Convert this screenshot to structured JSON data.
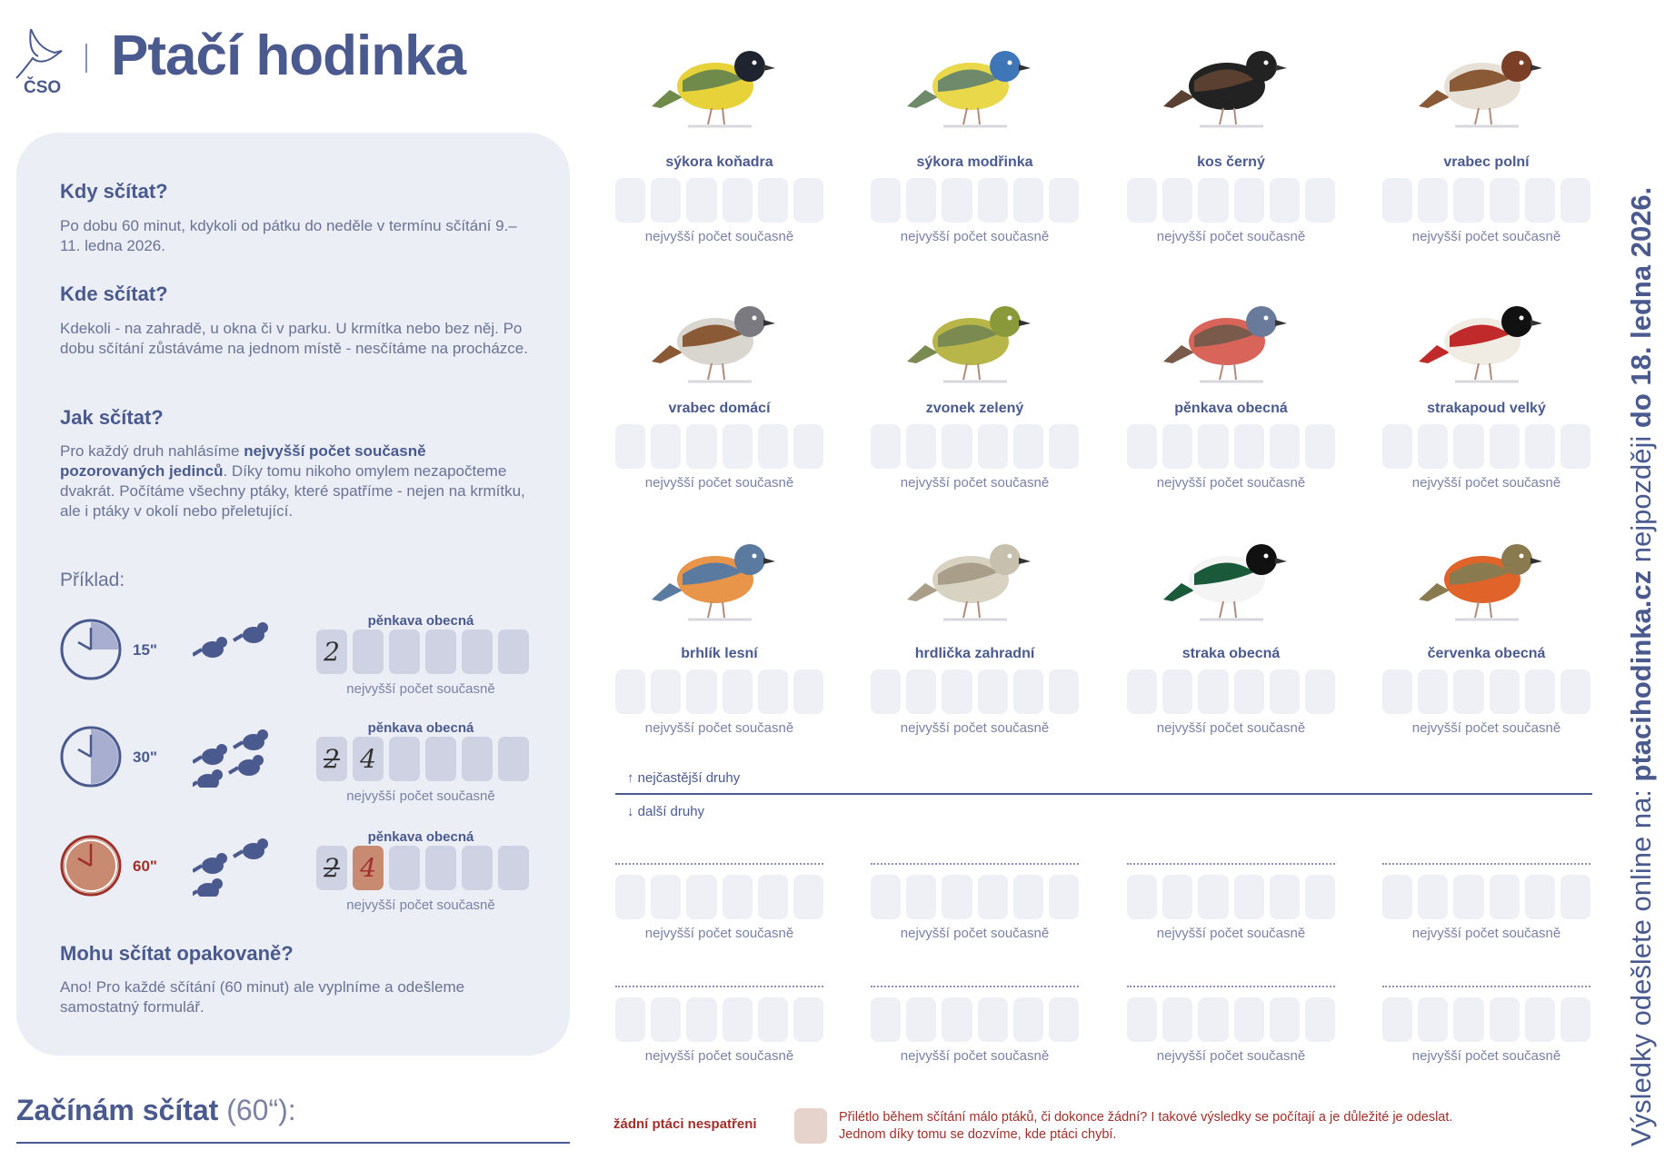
{
  "header": {
    "logo_text": "ČSO",
    "title": "Ptačí hodinka"
  },
  "info": {
    "when_title": "Kdy sčítat?",
    "when_text": "Po dobu 60 minut, kdykoli od pátku do neděle v termínu sčítání 9.–11. ledna 2026.",
    "where_title": "Kde sčítat?",
    "where_text": "Kdekoli - na zahradě, u okna či v parku. U krmítka nebo bez něj. Po dobu sčítání zůstáváme na jednom místě - nesčítáme na procházce.",
    "how_title": "Jak sčítat?",
    "how_text_1": "Pro každý druh nahlásíme ",
    "how_text_bold": "nejvyšší počet současně pozorovaných jedinců",
    "how_text_2": ". Díky tomu nikoho omylem nezapočteme dvakrát. Počítáme všechny ptáky, které spatříme - nejen na krmítku, ale i ptáky v okolí nebo přeletující.",
    "example_title": "Příklad:",
    "examples": [
      {
        "time": "15\"",
        "species": "pěnkava obecná",
        "values": [
          "2"
        ],
        "caption": "nejvyšší počet současně",
        "fraction": 0.25
      },
      {
        "time": "30\"",
        "species": "pěnkava obecná",
        "values": [
          "2",
          "4"
        ],
        "caption": "nejvyšší počet současně",
        "fraction": 0.5
      },
      {
        "time": "60\"",
        "species": "pěnkava obecná",
        "values": [
          "2",
          "4"
        ],
        "caption": "nejvyšší počet současně",
        "fraction": 1
      }
    ],
    "repeat_title": "Mohu sčítat opakovaně?",
    "repeat_text": "Ano! Pro každé sčítání (60 minut) ale vyplníme a odešleme samostatný formulář."
  },
  "start": {
    "label": "Začínám sčítat",
    "duration": "(60“):"
  },
  "species": [
    {
      "name": "sýkora koňadra",
      "caption": "nejvyšší počet současně",
      "colors": [
        "#e8d23a",
        "#1f2430",
        "#6f8a4a"
      ]
    },
    {
      "name": "sýkora modřinka",
      "caption": "nejvyšší počet současně",
      "colors": [
        "#e8d84a",
        "#3f76b8",
        "#6f8a6a"
      ]
    },
    {
      "name": "kos černý",
      "caption": "nejvyšší počet současně",
      "colors": [
        "#222",
        "#222",
        "#5a4030"
      ]
    },
    {
      "name": "vrabec polní",
      "caption": "nejvyšší počet současně",
      "colors": [
        "#e6e0d6",
        "#7a3f26",
        "#8a5a36"
      ]
    },
    {
      "name": "vrabec domácí",
      "caption": "nejvyšší počet současně",
      "colors": [
        "#d9d6d0",
        "#7a7a80",
        "#8a5a36"
      ]
    },
    {
      "name": "zvonek zelený",
      "caption": "nejvyšší počet současně",
      "colors": [
        "#b8b648",
        "#8a9a3a",
        "#7a8a50"
      ]
    },
    {
      "name": "pěnkava obecná",
      "caption": "nejvyšší počet současně",
      "colors": [
        "#d8645a",
        "#6a7a9a",
        "#7a5a4a"
      ]
    },
    {
      "name": "strakapoud velký",
      "caption": "nejvyšší počet současně",
      "colors": [
        "#f0ece4",
        "#111",
        "#c02a2a"
      ]
    },
    {
      "name": "brhlík lesní",
      "caption": "nejvyšší počet současně",
      "colors": [
        "#e8954a",
        "#5a7aa0",
        "#5a7aa0"
      ]
    },
    {
      "name": "hrdlička zahradní",
      "caption": "nejvyšší počet současně",
      "colors": [
        "#d8d2c2",
        "#c8c0ae",
        "#a89e8a"
      ]
    },
    {
      "name": "straka obecná",
      "caption": "nejvyšší počet současně",
      "colors": [
        "#f4f4f4",
        "#111",
        "#1a5a3a"
      ]
    },
    {
      "name": "červenka obecná",
      "caption": "nejvyšší počet současně",
      "colors": [
        "#e0642a",
        "#8a7a50",
        "#8a7a50"
      ]
    }
  ],
  "sections": {
    "common": "nejčastější druhy",
    "other": "další druhy"
  },
  "other_caption": "nejvyšší počet současně",
  "none": {
    "label": "žádní ptáci nespatřeni",
    "text_1": "Přilétlo během sčítání málo ptáků, či dokonce žádní? I takové výsledky se počítají a je důležité je odeslat.",
    "text_2": "Jednom díky tomu se dozvíme, kde ptáci chybí."
  },
  "vertical": {
    "pre": "Výsledky odešlete online na: ",
    "site": "ptacihodinka.cz",
    "mid": " nejpozději ",
    "deadline": "do 18. ledna 2026."
  },
  "colors": {
    "primary": "#4a5a8f",
    "accent_red": "#a0302a",
    "highlight": "#c98a72"
  }
}
